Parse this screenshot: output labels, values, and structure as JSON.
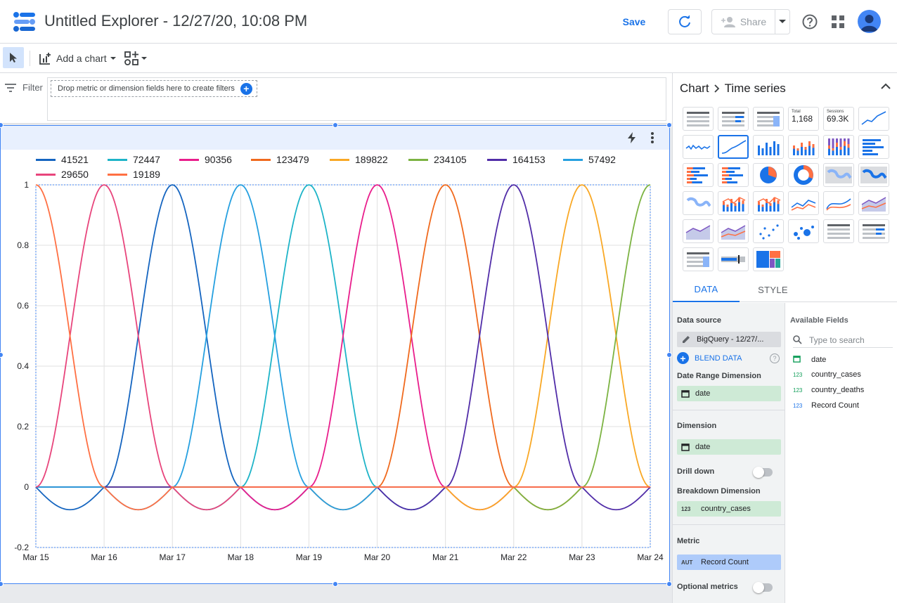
{
  "header": {
    "title": "Untitled Explorer - 12/27/20, 10:08 PM",
    "save_label": "Save",
    "share_label": "Share"
  },
  "toolbar": {
    "add_chart_label": "Add a chart"
  },
  "filter": {
    "label": "Filter",
    "drop_hint": "Drop metric or dimension fields here to create filters"
  },
  "chart_data": {
    "type": "line",
    "title": "",
    "xlabel": "",
    "ylabel": "",
    "ylim": [
      -0.2,
      1
    ],
    "yticks": [
      "1",
      "0.8",
      "0.6",
      "0.4",
      "0.2",
      "0",
      "-0.2"
    ],
    "categories": [
      "Mar 15",
      "Mar 16",
      "Mar 17",
      "Mar 18",
      "Mar 19",
      "Mar 20",
      "Mar 21",
      "Mar 22",
      "Mar 23",
      "Mar 24"
    ],
    "grid": true,
    "legend": "top",
    "series": [
      {
        "name": "41521",
        "color": "#1565c0",
        "peak": "Mar 17"
      },
      {
        "name": "72447",
        "color": "#1eb4c8",
        "peak": "Mar 19"
      },
      {
        "name": "90356",
        "color": "#e91e8c",
        "peak": "Mar 20"
      },
      {
        "name": "123479",
        "color": "#f06a1e",
        "peak": "Mar 21"
      },
      {
        "name": "189822",
        "color": "#f9a825",
        "peak": "Mar 23"
      },
      {
        "name": "234105",
        "color": "#7cb342",
        "peak": "Mar 24"
      },
      {
        "name": "164153",
        "color": "#512da8",
        "peak": "Mar 22"
      },
      {
        "name": "57492",
        "color": "#26a0e0",
        "peak": "Mar 18"
      },
      {
        "name": "29650",
        "color": "#e8457c",
        "peak": "Mar 16"
      },
      {
        "name": "19189",
        "color": "#ff7043",
        "peak": "Mar 15"
      }
    ]
  },
  "panel": {
    "crumb_root": "Chart",
    "crumb_leaf": "Time series",
    "tab_data": "DATA",
    "tab_style": "STYLE",
    "data_source_label": "Data source",
    "data_source_value": "BigQuery - 12/27/...",
    "blend_label": "BLEND DATA",
    "date_range_label": "Date Range Dimension",
    "date_range_value": "date",
    "dimension_label": "Dimension",
    "dimension_value": "date",
    "drill_down_label": "Drill down",
    "breakdown_label": "Breakdown Dimension",
    "breakdown_value": "country_cases",
    "metric_label": "Metric",
    "metric_badge": "AUT",
    "metric_value": "Record Count",
    "optional_metrics_label": "Optional metrics",
    "available_fields_label": "Available Fields",
    "search_placeholder": "Type to search",
    "fields": [
      {
        "type": "date",
        "name": "date"
      },
      {
        "type": "123",
        "name": "country_cases"
      },
      {
        "type": "123",
        "name": "country_deaths"
      },
      {
        "type": "123",
        "name": "Record Count"
      }
    ],
    "scorecard_total_label": "Total",
    "scorecard_total_value": "1,168",
    "scorecard_sessions_label": "Sessions",
    "scorecard_sessions_value": "69.3K"
  }
}
